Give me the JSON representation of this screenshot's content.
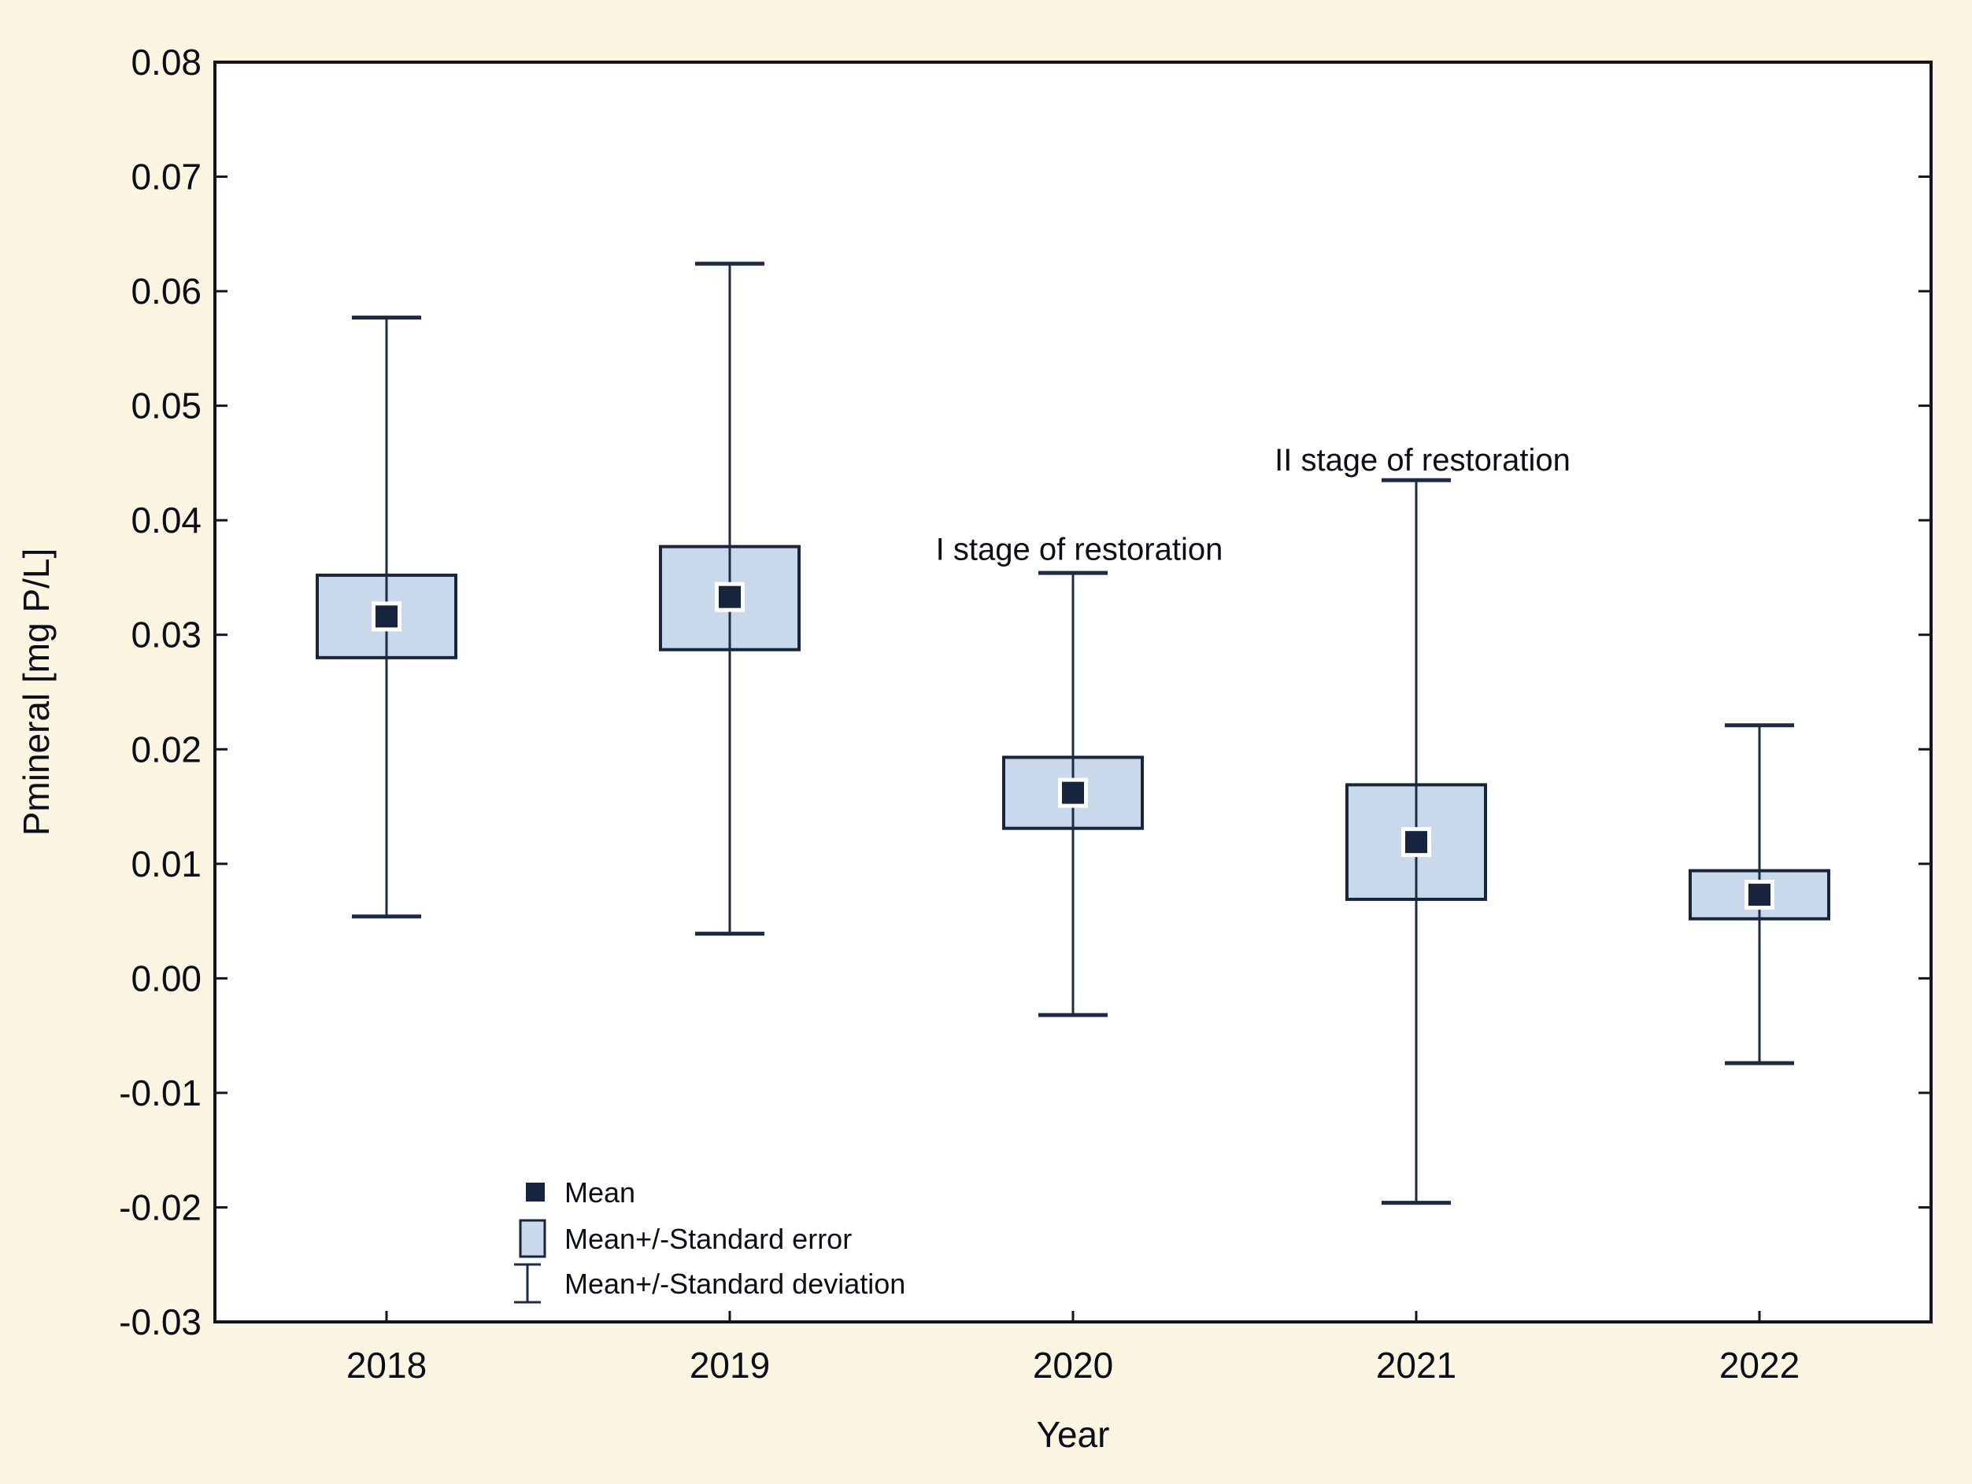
{
  "chart_data": {
    "type": "box-whisker-mean",
    "title": "",
    "xlabel": "Year",
    "ylabel": "Pmineral [mg P/L]",
    "categories": [
      "2018",
      "2019",
      "2020",
      "2021",
      "2022"
    ],
    "ylim": [
      -0.03,
      0.08
    ],
    "ytick_step": 0.01,
    "ytick_labels": [
      "0.08",
      "0.07",
      "0.06",
      "0.05",
      "0.04",
      "0.03",
      "0.02",
      "0.01",
      "0.00",
      "-0.01",
      "-0.02",
      "-0.03"
    ],
    "grid": false,
    "legend_position": "inside-bottom-left",
    "series": [
      {
        "year": "2018",
        "mean": 0.0316,
        "se_low": 0.028,
        "se_high": 0.0352,
        "sd_low": 0.0054,
        "sd_high": 0.0577
      },
      {
        "year": "2019",
        "mean": 0.0333,
        "se_low": 0.0287,
        "se_high": 0.0377,
        "sd_low": 0.0039,
        "sd_high": 0.0624
      },
      {
        "year": "2020",
        "mean": 0.0162,
        "se_low": 0.0131,
        "se_high": 0.0193,
        "sd_low": -0.0032,
        "sd_high": 0.0354
      },
      {
        "year": "2021",
        "mean": 0.0119,
        "se_low": 0.0069,
        "se_high": 0.0169,
        "sd_low": -0.0196,
        "sd_high": 0.0435
      },
      {
        "year": "2022",
        "mean": 0.0073,
        "se_low": 0.0052,
        "se_high": 0.0094,
        "sd_low": -0.0074,
        "sd_high": 0.0221
      }
    ],
    "annotations": [
      {
        "text": "I stage of restoration",
        "category": "2020",
        "value": 0.0375
      },
      {
        "text": "II stage of restoration",
        "category": "2021",
        "value": 0.0453
      }
    ],
    "legend": {
      "items": [
        {
          "glyph": "mean-square",
          "label": "Mean"
        },
        {
          "glyph": "se-box",
          "label": "Mean+/-Standard error"
        },
        {
          "glyph": "sd-whisker",
          "label": "Mean+/-Standard deviation"
        }
      ]
    }
  },
  "colors": {
    "background": "#FBF5E2",
    "plot_background": "#FFFFFF",
    "frame": "#10151F",
    "line": "#1C2A42",
    "box_fill": "#C9D9EC",
    "box_border": "#16243E",
    "marker": "#16243E",
    "marker_halo": "#FFFFFF",
    "text": "#0B0E18"
  }
}
